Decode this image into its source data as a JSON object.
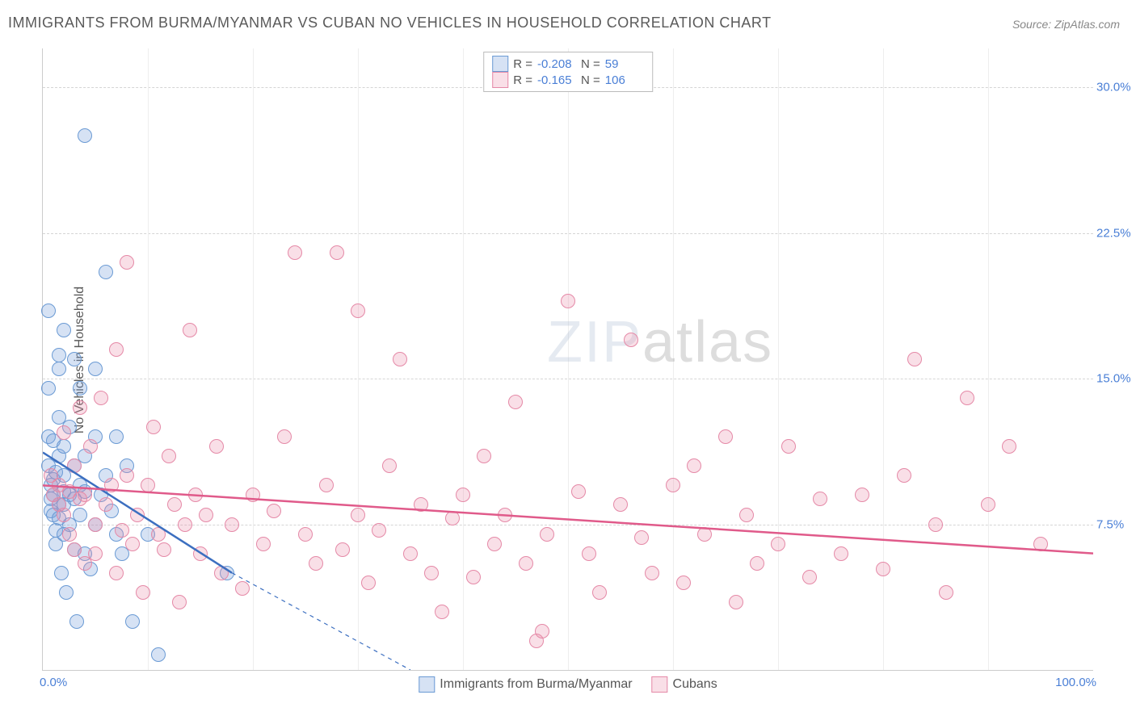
{
  "title": "IMMIGRANTS FROM BURMA/MYANMAR VS CUBAN NO VEHICLES IN HOUSEHOLD CORRELATION CHART",
  "source": "Source: ZipAtlas.com",
  "ylabel": "No Vehicles in Household",
  "watermark_zip": "ZIP",
  "watermark_atlas": "atlas",
  "chart": {
    "type": "scatter",
    "xlim": [
      0,
      100
    ],
    "ylim": [
      0,
      32
    ],
    "xticks_labels": {
      "left": "0.0%",
      "right": "100.0%"
    },
    "yticks": [
      {
        "v": 7.5,
        "label": "7.5%"
      },
      {
        "v": 15.0,
        "label": "15.0%"
      },
      {
        "v": 22.5,
        "label": "22.5%"
      },
      {
        "v": 30.0,
        "label": "30.0%"
      }
    ],
    "xgrid": [
      10,
      20,
      30,
      40,
      50,
      60,
      70,
      80,
      90
    ],
    "background_color": "#ffffff",
    "grid_color": "#d5d5d5",
    "axis_color": "#cccccc",
    "ytick_color": "#4a7fd6",
    "marker_radius": 9,
    "marker_border": 1.4,
    "line_width": 2.5
  },
  "series": [
    {
      "id": "burma",
      "label": "Immigrants from Burma/Myanmar",
      "fill": "rgba(120,160,220,0.30)",
      "stroke": "#6a9ad4",
      "line_color": "#3c6fc0",
      "R": "-0.208",
      "N": "59",
      "trend": {
        "x1": 0,
        "y1": 11.2,
        "x2": 18,
        "y2": 5.0,
        "dash_to_x": 35,
        "dash_to_y": 0
      },
      "points": [
        [
          0.5,
          18.5
        ],
        [
          0.5,
          14.5
        ],
        [
          0.5,
          12.0
        ],
        [
          0.5,
          10.5
        ],
        [
          0.8,
          9.5
        ],
        [
          0.8,
          8.8
        ],
        [
          0.8,
          8.2
        ],
        [
          1.0,
          11.8
        ],
        [
          1.0,
          9.8
        ],
        [
          1.0,
          9.0
        ],
        [
          1.0,
          8.0
        ],
        [
          1.2,
          10.2
        ],
        [
          1.2,
          7.2
        ],
        [
          1.2,
          6.5
        ],
        [
          1.5,
          16.2
        ],
        [
          1.5,
          15.5
        ],
        [
          1.5,
          13.0
        ],
        [
          1.5,
          11.0
        ],
        [
          1.5,
          8.5
        ],
        [
          1.5,
          7.8
        ],
        [
          1.8,
          5.0
        ],
        [
          2.0,
          17.5
        ],
        [
          2.0,
          11.5
        ],
        [
          2.0,
          10.0
        ],
        [
          2.0,
          9.2
        ],
        [
          2.0,
          8.5
        ],
        [
          2.0,
          7.0
        ],
        [
          2.2,
          4.0
        ],
        [
          2.5,
          12.5
        ],
        [
          2.5,
          9.0
        ],
        [
          2.5,
          7.5
        ],
        [
          3.0,
          16.0
        ],
        [
          3.0,
          10.5
        ],
        [
          3.0,
          8.8
        ],
        [
          3.0,
          6.2
        ],
        [
          3.2,
          2.5
        ],
        [
          3.5,
          14.5
        ],
        [
          3.5,
          9.5
        ],
        [
          3.5,
          8.0
        ],
        [
          4.0,
          27.5
        ],
        [
          4.0,
          11.0
        ],
        [
          4.0,
          9.2
        ],
        [
          4.0,
          6.0
        ],
        [
          4.5,
          5.2
        ],
        [
          5.0,
          15.5
        ],
        [
          5.0,
          12.0
        ],
        [
          5.0,
          7.5
        ],
        [
          5.5,
          9.0
        ],
        [
          6.0,
          20.5
        ],
        [
          6.0,
          10.0
        ],
        [
          6.5,
          8.2
        ],
        [
          7.0,
          12.0
        ],
        [
          7.0,
          7.0
        ],
        [
          7.5,
          6.0
        ],
        [
          8.0,
          10.5
        ],
        [
          8.5,
          2.5
        ],
        [
          10.0,
          7.0
        ],
        [
          11.0,
          0.8
        ],
        [
          17.5,
          5.0
        ]
      ]
    },
    {
      "id": "cubans",
      "label": "Cubans",
      "fill": "rgba(235,140,170,0.28)",
      "stroke": "#e589a7",
      "line_color": "#e05a8a",
      "R": "-0.165",
      "N": "106",
      "trend": {
        "x1": 0,
        "y1": 9.5,
        "x2": 100,
        "y2": 6.0
      },
      "points": [
        [
          0.8,
          10.0
        ],
        [
          1.0,
          9.0
        ],
        [
          1.5,
          8.5
        ],
        [
          1.5,
          9.5
        ],
        [
          2.0,
          8.0
        ],
        [
          2.0,
          12.2
        ],
        [
          2.5,
          9.2
        ],
        [
          2.5,
          7.0
        ],
        [
          3.0,
          10.5
        ],
        [
          3.0,
          6.2
        ],
        [
          3.5,
          13.5
        ],
        [
          3.5,
          8.8
        ],
        [
          4.0,
          9.0
        ],
        [
          4.0,
          5.5
        ],
        [
          4.5,
          11.5
        ],
        [
          5.0,
          7.5
        ],
        [
          5.0,
          6.0
        ],
        [
          5.5,
          14.0
        ],
        [
          6.0,
          8.5
        ],
        [
          6.5,
          9.5
        ],
        [
          7.0,
          16.5
        ],
        [
          7.0,
          5.0
        ],
        [
          7.5,
          7.2
        ],
        [
          8.0,
          21.0
        ],
        [
          8.0,
          10.0
        ],
        [
          8.5,
          6.5
        ],
        [
          9.0,
          8.0
        ],
        [
          9.5,
          4.0
        ],
        [
          10.0,
          9.5
        ],
        [
          10.5,
          12.5
        ],
        [
          11.0,
          7.0
        ],
        [
          11.5,
          6.2
        ],
        [
          12.0,
          11.0
        ],
        [
          12.5,
          8.5
        ],
        [
          13.0,
          3.5
        ],
        [
          13.5,
          7.5
        ],
        [
          14.0,
          17.5
        ],
        [
          14.5,
          9.0
        ],
        [
          15.0,
          6.0
        ],
        [
          15.5,
          8.0
        ],
        [
          16.5,
          11.5
        ],
        [
          17.0,
          5.0
        ],
        [
          18.0,
          7.5
        ],
        [
          19.0,
          4.2
        ],
        [
          20.0,
          9.0
        ],
        [
          21.0,
          6.5
        ],
        [
          22.0,
          8.2
        ],
        [
          23.0,
          12.0
        ],
        [
          24.0,
          21.5
        ],
        [
          25.0,
          7.0
        ],
        [
          26.0,
          5.5
        ],
        [
          27.0,
          9.5
        ],
        [
          28.0,
          21.5
        ],
        [
          28.5,
          6.2
        ],
        [
          30.0,
          18.5
        ],
        [
          30.0,
          8.0
        ],
        [
          31.0,
          4.5
        ],
        [
          32.0,
          7.2
        ],
        [
          33.0,
          10.5
        ],
        [
          34.0,
          16.0
        ],
        [
          35.0,
          6.0
        ],
        [
          36.0,
          8.5
        ],
        [
          37.0,
          5.0
        ],
        [
          38.0,
          3.0
        ],
        [
          39.0,
          7.8
        ],
        [
          40.0,
          9.0
        ],
        [
          41.0,
          4.8
        ],
        [
          42.0,
          11.0
        ],
        [
          43.0,
          6.5
        ],
        [
          44.0,
          8.0
        ],
        [
          45.0,
          13.8
        ],
        [
          46.0,
          5.5
        ],
        [
          47.0,
          1.5
        ],
        [
          47.5,
          2.0
        ],
        [
          48.0,
          7.0
        ],
        [
          50.0,
          19.0
        ],
        [
          51.0,
          9.2
        ],
        [
          52.0,
          6.0
        ],
        [
          53.0,
          4.0
        ],
        [
          55.0,
          8.5
        ],
        [
          56.0,
          17.0
        ],
        [
          57.0,
          6.8
        ],
        [
          58.0,
          5.0
        ],
        [
          60.0,
          9.5
        ],
        [
          61.0,
          4.5
        ],
        [
          62.0,
          10.5
        ],
        [
          63.0,
          7.0
        ],
        [
          65.0,
          12.0
        ],
        [
          66.0,
          3.5
        ],
        [
          67.0,
          8.0
        ],
        [
          68.0,
          5.5
        ],
        [
          70.0,
          6.5
        ],
        [
          71.0,
          11.5
        ],
        [
          73.0,
          4.8
        ],
        [
          74.0,
          8.8
        ],
        [
          76.0,
          6.0
        ],
        [
          78.0,
          9.0
        ],
        [
          80.0,
          5.2
        ],
        [
          82.0,
          10.0
        ],
        [
          83.0,
          16.0
        ],
        [
          85.0,
          7.5
        ],
        [
          86.0,
          4.0
        ],
        [
          88.0,
          14.0
        ],
        [
          90.0,
          8.5
        ],
        [
          92.0,
          11.5
        ],
        [
          95.0,
          6.5
        ]
      ]
    }
  ]
}
